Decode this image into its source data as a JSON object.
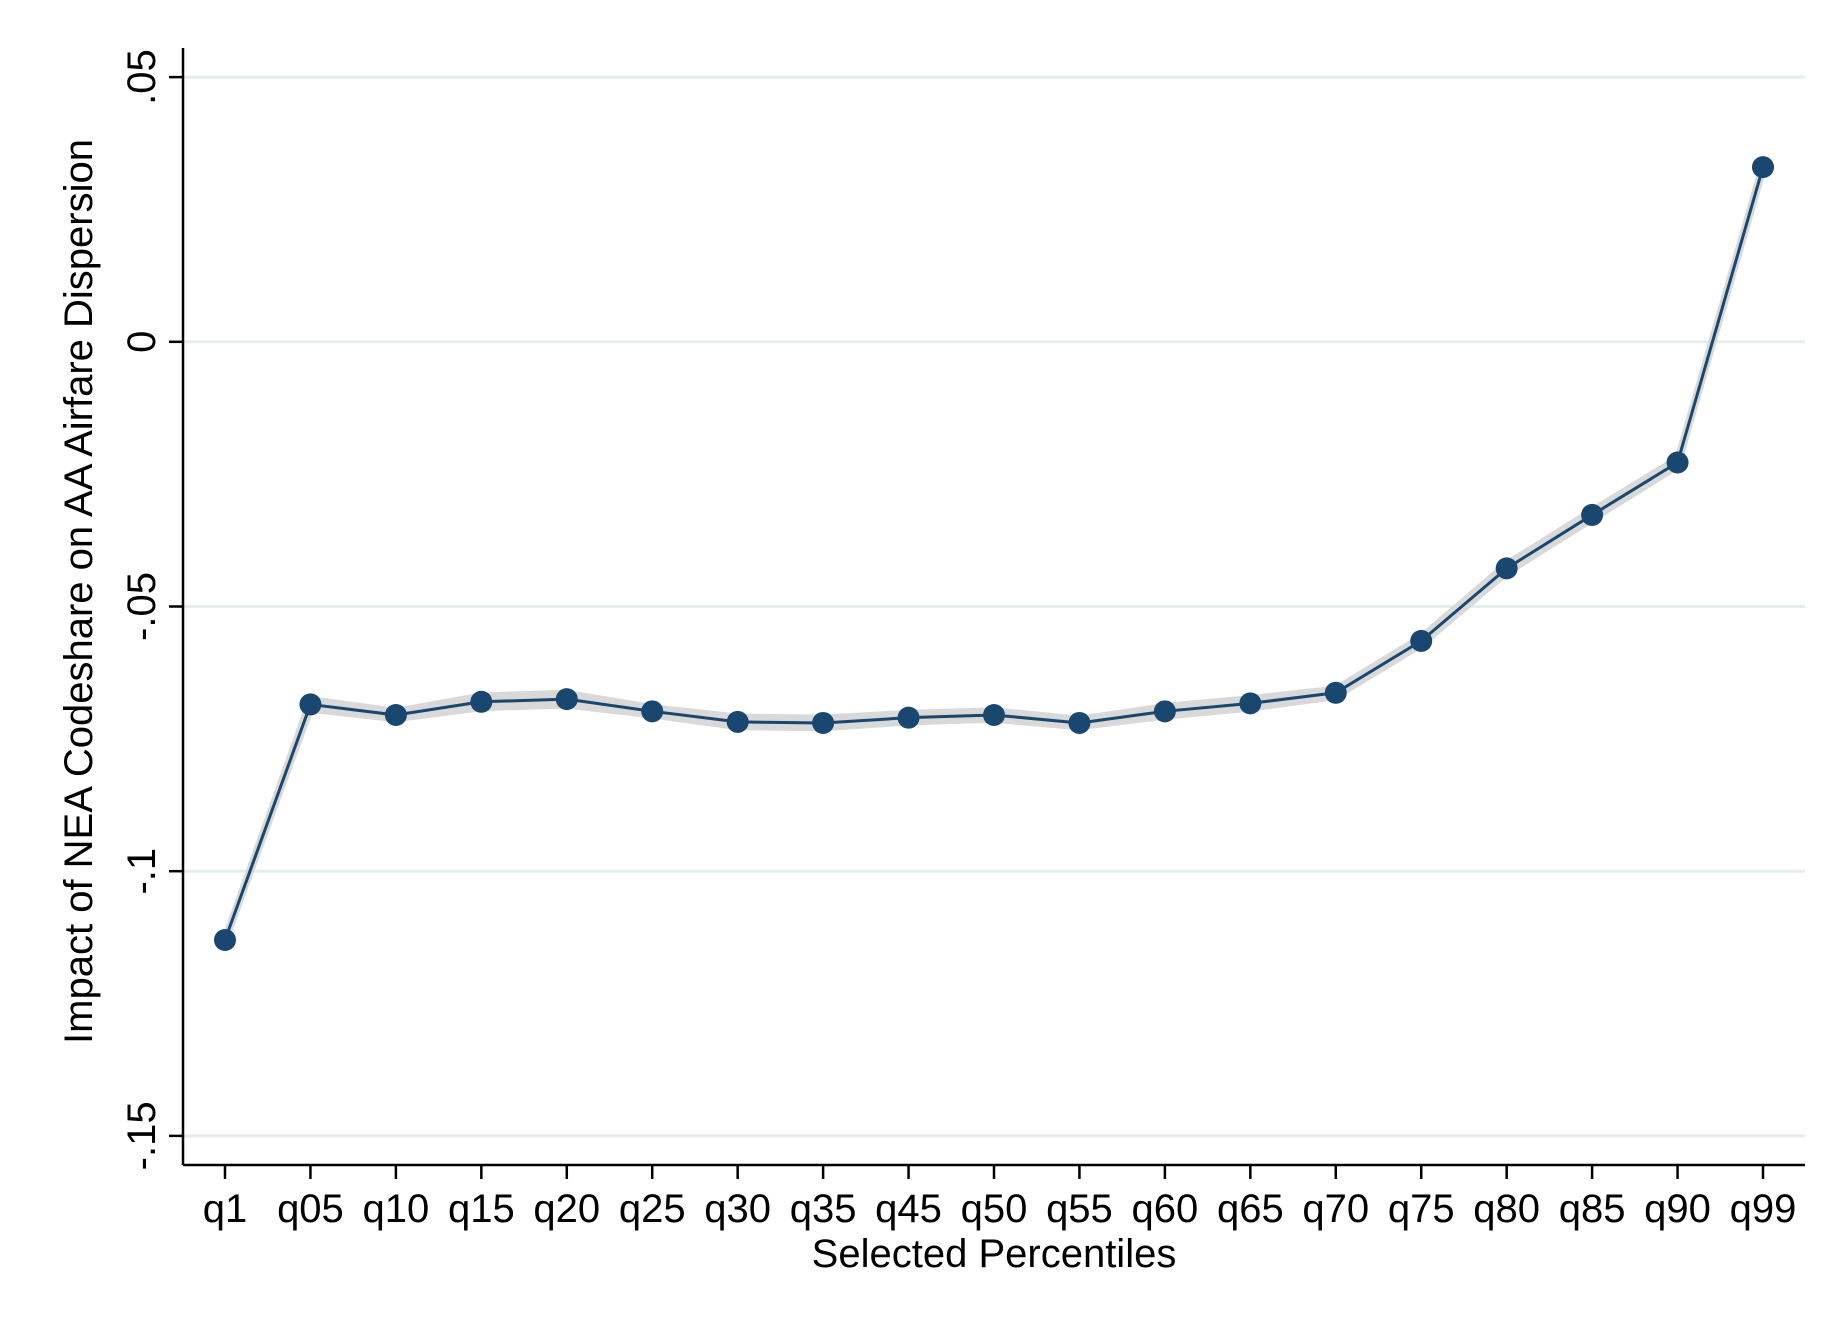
{
  "chart_data": {
    "type": "line",
    "title": "",
    "xlabel": "Selected Percentiles",
    "ylabel": "Impact of NEA Codeshare on AA Airfare Dispersion",
    "categories": [
      "q1",
      "q05",
      "q10",
      "q15",
      "q20",
      "q25",
      "q30",
      "q35",
      "q45",
      "q50",
      "q55",
      "q60",
      "q65",
      "q70",
      "q75",
      "q80",
      "q85",
      "q90",
      "q99"
    ],
    "series": [
      {
        "values": [
          -0.113,
          -0.0685,
          -0.0705,
          -0.068,
          -0.0675,
          -0.0698,
          -0.0718,
          -0.072,
          -0.071,
          -0.0705,
          -0.072,
          -0.0698,
          -0.0683,
          -0.0663,
          -0.0565,
          -0.0428,
          -0.0327,
          -0.0228,
          0.033
        ],
        "lower": [
          -0.1135,
          -0.0695,
          -0.0713,
          -0.0692,
          -0.0687,
          -0.0706,
          -0.0728,
          -0.073,
          -0.0719,
          -0.0714,
          -0.0728,
          -0.0708,
          -0.0693,
          -0.0671,
          -0.0573,
          -0.0437,
          -0.0336,
          -0.0236,
          0.0322
        ],
        "upper": [
          -0.1125,
          -0.0675,
          -0.0697,
          -0.0668,
          -0.0663,
          -0.069,
          -0.0708,
          -0.071,
          -0.0701,
          -0.0696,
          -0.0712,
          -0.0688,
          -0.0673,
          -0.0655,
          -0.0557,
          -0.0419,
          -0.0318,
          -0.022,
          0.0338
        ]
      }
    ],
    "y_ticks": [
      {
        "value": 0.05,
        "label": ".05"
      },
      {
        "value": 0,
        "label": "0"
      },
      {
        "value": -0.05,
        "label": "-.05"
      },
      {
        "value": -0.1,
        "label": "-.1"
      },
      {
        "value": -0.15,
        "label": "-.15"
      }
    ],
    "ylim": [
      -0.1555,
      0.0555
    ],
    "grid": true,
    "colors": {
      "line": "#1a476f",
      "marker": "#1a476f",
      "ci_band": "#d9d9d9",
      "grid": "#e4eef0",
      "axis": "#000000"
    }
  }
}
